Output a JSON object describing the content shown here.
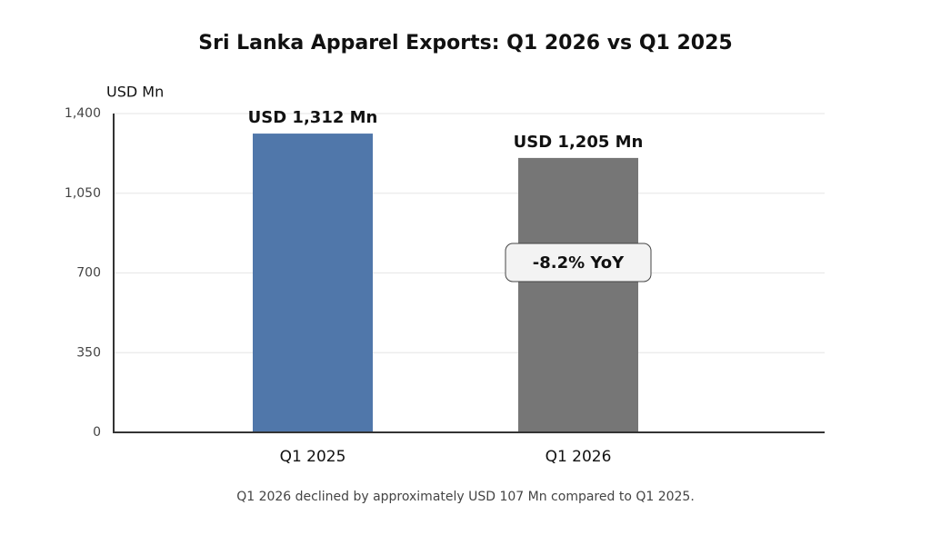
{
  "chart_data": {
    "type": "bar",
    "title": "Sri Lanka Apparel Exports: Q1 2026 vs Q1 2025",
    "y_label": "USD Mn",
    "categories": [
      "Q1 2025",
      "Q1 2026"
    ],
    "values": [
      1312,
      1205
    ],
    "value_labels": [
      "USD 1,312 Mn",
      "USD 1,205 Mn"
    ],
    "colors": [
      "#5077aa",
      "#767676"
    ],
    "ylim": [
      0,
      1400
    ],
    "yticks": [
      0,
      350,
      700,
      {
        "value": 1050,
        "label": "1,050"
      },
      {
        "value": 1400,
        "label": "1,400"
      }
    ],
    "grid": true,
    "annotation": "-8.2% YoY",
    "footnote": "Q1 2026 declined by approximately USD 107 Mn compared to Q1 2025."
  }
}
